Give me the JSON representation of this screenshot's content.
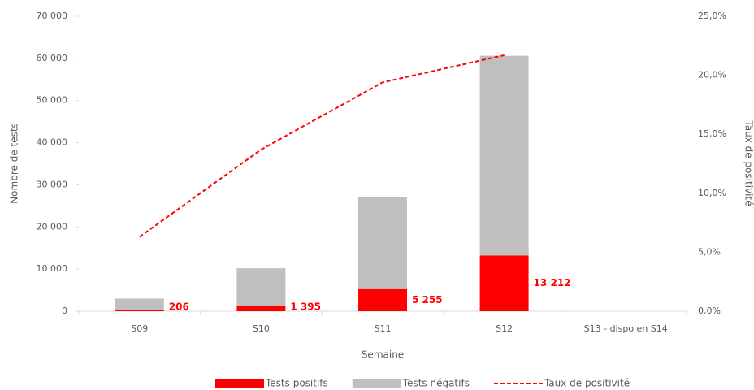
{
  "chart_data": {
    "type": "bar",
    "x_label": "Semaine",
    "y_label": "Nombre de tests",
    "y2_label": "Taux de positivité",
    "categories": [
      "S09",
      "S10",
      "S11",
      "S12",
      "S13 - dispo en S14"
    ],
    "stacked": true,
    "series": [
      {
        "name": "Tests positifs",
        "color": "#ff0000",
        "type": "bar",
        "values": [
          206,
          1395,
          5255,
          13212,
          null
        ],
        "value_labels": [
          "206",
          "1 395",
          "5 255",
          "13 212",
          null
        ]
      },
      {
        "name": "Tests négatifs",
        "color": "#bfbfbf",
        "type": "bar",
        "values": [
          2800,
          8800,
          21850,
          47400,
          null
        ]
      },
      {
        "name": "Taux de positivité",
        "color": "#ff0000",
        "type": "line",
        "axis": "y2",
        "dashed": true,
        "values": [
          6.3,
          13.7,
          19.4,
          21.7,
          null
        ]
      }
    ],
    "ylim": [
      0,
      70000
    ],
    "yticks": [
      0,
      {
        "value": 10000,
        "label": "10 000"
      },
      {
        "value": 20000,
        "label": "20 000"
      },
      {
        "value": 30000,
        "label": "30 000"
      },
      {
        "value": 40000,
        "label": "40 000"
      },
      {
        "value": 50000,
        "label": "50 000"
      },
      {
        "value": 60000,
        "label": "60 000"
      },
      {
        "value": 70000,
        "label": "70 000"
      }
    ],
    "y2lim": [
      0,
      25
    ],
    "y2ticks": [
      {
        "value": 0,
        "label": "0,0%"
      },
      {
        "value": 5,
        "label": "5,0%"
      },
      {
        "value": 10,
        "label": "10,0%"
      },
      {
        "value": 15,
        "label": "15,0%"
      },
      {
        "value": 20,
        "label": "20,0%"
      },
      {
        "value": 25,
        "label": "25,0%"
      }
    ],
    "legend": "bottom"
  }
}
